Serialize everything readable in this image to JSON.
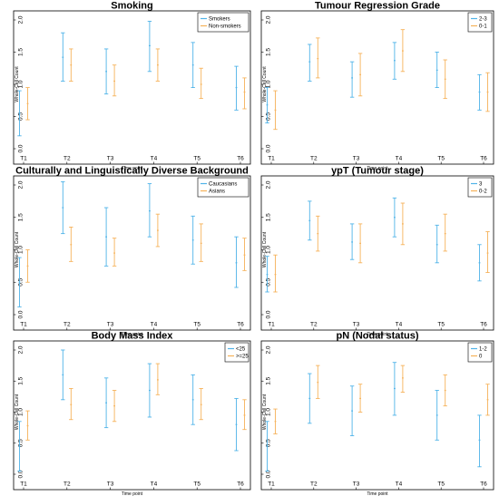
{
  "colors": {
    "series_a": "#4fb3e8",
    "series_b": "#f6b25a"
  },
  "x_label": "Time point",
  "y_label": "Whole-Cell Count",
  "chart_data": [
    {
      "type": "errorbar",
      "title": "Smoking",
      "xlabel": "Time point",
      "ylabel": "Whole-Cell Count",
      "ylim": [
        0,
        2.0
      ],
      "categories": [
        "T1",
        "T2",
        "T3",
        "T4",
        "T5",
        "T6"
      ],
      "legend_position": "top-right",
      "series": [
        {
          "name": "Smokers",
          "mean": [
            0.55,
            1.42,
            1.2,
            1.6,
            1.3,
            0.95
          ],
          "low": [
            0.2,
            1.05,
            0.85,
            1.2,
            0.95,
            0.6
          ],
          "high": [
            0.9,
            1.8,
            1.55,
            1.98,
            1.65,
            1.28
          ]
        },
        {
          "name": "Non-smokers",
          "mean": [
            0.7,
            1.3,
            1.05,
            1.3,
            1.0,
            0.88
          ],
          "low": [
            0.45,
            1.05,
            0.82,
            1.05,
            0.78,
            0.62
          ],
          "high": [
            0.95,
            1.55,
            1.3,
            1.55,
            1.25,
            1.1
          ]
        }
      ]
    },
    {
      "type": "errorbar",
      "title": "Tumour Regression Grade",
      "xlabel": "Time point",
      "ylabel": "Whole-Cell Count",
      "ylim": [
        0,
        2.0
      ],
      "categories": [
        "T1",
        "T2",
        "T3",
        "T4",
        "T5",
        "T6"
      ],
      "legend_position": "top-right",
      "series": [
        {
          "name": "2-3",
          "mean": [
            0.68,
            1.35,
            1.1,
            1.37,
            1.22,
            0.88
          ],
          "low": [
            0.4,
            1.05,
            0.8,
            1.08,
            0.95,
            0.6
          ],
          "high": [
            0.95,
            1.62,
            1.35,
            1.65,
            1.5,
            1.15
          ]
        },
        {
          "name": "0-1",
          "mean": [
            0.6,
            1.4,
            1.15,
            1.52,
            1.08,
            0.88
          ],
          "low": [
            0.3,
            1.1,
            0.82,
            1.2,
            0.78,
            0.58
          ],
          "high": [
            0.9,
            1.72,
            1.48,
            1.85,
            1.38,
            1.18
          ]
        }
      ]
    },
    {
      "type": "errorbar",
      "title": "Culturally and Linguistically Diverse Background",
      "xlabel": "Time point",
      "ylabel": "Whole-Cell Count",
      "ylim": [
        0,
        2.0
      ],
      "categories": [
        "T1",
        "T2",
        "T3",
        "T4",
        "T5",
        "T6"
      ],
      "legend_position": "top-right",
      "series": [
        {
          "name": "Caucasians",
          "mean": [
            0.5,
            1.65,
            1.2,
            1.6,
            1.15,
            0.8
          ],
          "low": [
            0.12,
            1.25,
            0.75,
            1.2,
            0.78,
            0.42
          ],
          "high": [
            0.88,
            2.05,
            1.65,
            2.02,
            1.52,
            1.2
          ]
        },
        {
          "name": "Asians",
          "mean": [
            0.75,
            1.08,
            0.95,
            1.3,
            1.1,
            0.92
          ],
          "low": [
            0.5,
            0.82,
            0.75,
            1.05,
            0.82,
            0.68
          ],
          "high": [
            1.0,
            1.35,
            1.18,
            1.55,
            1.4,
            1.18
          ]
        }
      ]
    },
    {
      "type": "errorbar",
      "title": "ypT (Tumour stage)",
      "xlabel": "Time point",
      "ylabel": "Whole-Cell Count",
      "ylim": [
        0,
        2.0
      ],
      "categories": [
        "T1",
        "T2",
        "T3",
        "T4",
        "T5",
        "T6"
      ],
      "legend_position": "top-right",
      "series": [
        {
          "name": "3",
          "mean": [
            0.62,
            1.45,
            1.12,
            1.5,
            1.08,
            0.8
          ],
          "low": [
            0.35,
            1.15,
            0.85,
            1.2,
            0.8,
            0.52
          ],
          "high": [
            0.9,
            1.75,
            1.4,
            1.8,
            1.38,
            1.08
          ]
        },
        {
          "name": "0-2",
          "mean": [
            0.62,
            1.25,
            1.1,
            1.4,
            1.25,
            0.95
          ],
          "low": [
            0.35,
            0.98,
            0.8,
            1.08,
            0.98,
            0.65
          ],
          "high": [
            0.92,
            1.52,
            1.4,
            1.72,
            1.55,
            1.28
          ]
        }
      ]
    },
    {
      "type": "errorbar",
      "title": "Body Mass Index",
      "xlabel": "Time point",
      "ylabel": "Whole-Cell Count",
      "ylim": [
        0,
        2.0
      ],
      "categories": [
        "T1",
        "T2",
        "T3",
        "T4",
        "T5",
        "T6"
      ],
      "legend_position": "top-right",
      "series": [
        {
          "name": "<25",
          "mean": [
            0.45,
            1.6,
            1.15,
            1.35,
            1.2,
            0.8
          ],
          "low": [
            0.05,
            1.2,
            0.75,
            0.92,
            0.8,
            0.38
          ],
          "high": [
            0.85,
            2.0,
            1.55,
            1.78,
            1.6,
            1.22
          ]
        },
        {
          "name": ">=25",
          "mean": [
            0.78,
            1.12,
            1.1,
            1.52,
            1.12,
            0.95
          ],
          "low": [
            0.55,
            0.88,
            0.85,
            1.28,
            0.88,
            0.72
          ],
          "high": [
            1.02,
            1.38,
            1.35,
            1.78,
            1.38,
            1.2
          ]
        }
      ]
    },
    {
      "type": "errorbar",
      "title": "pN (Nodal status)",
      "xlabel": "Time point",
      "ylabel": "Whole-Cell Count",
      "ylim": [
        0,
        2.0
      ],
      "categories": [
        "T1",
        "T2",
        "T3",
        "T4",
        "T5",
        "T6"
      ],
      "legend_position": "top-right",
      "series": [
        {
          "name": "1-2",
          "mean": [
            0.45,
            1.22,
            1.02,
            1.38,
            0.95,
            0.55
          ],
          "low": [
            0.05,
            0.82,
            0.62,
            0.95,
            0.55,
            0.12
          ],
          "high": [
            0.85,
            1.62,
            1.42,
            1.8,
            1.35,
            0.95
          ]
        },
        {
          "name": "0",
          "mean": [
            0.85,
            1.48,
            1.22,
            1.55,
            1.35,
            1.2
          ],
          "low": [
            0.65,
            1.22,
            1.0,
            1.32,
            1.1,
            0.95
          ],
          "high": [
            1.05,
            1.75,
            1.45,
            1.75,
            1.6,
            1.45
          ]
        }
      ]
    }
  ]
}
